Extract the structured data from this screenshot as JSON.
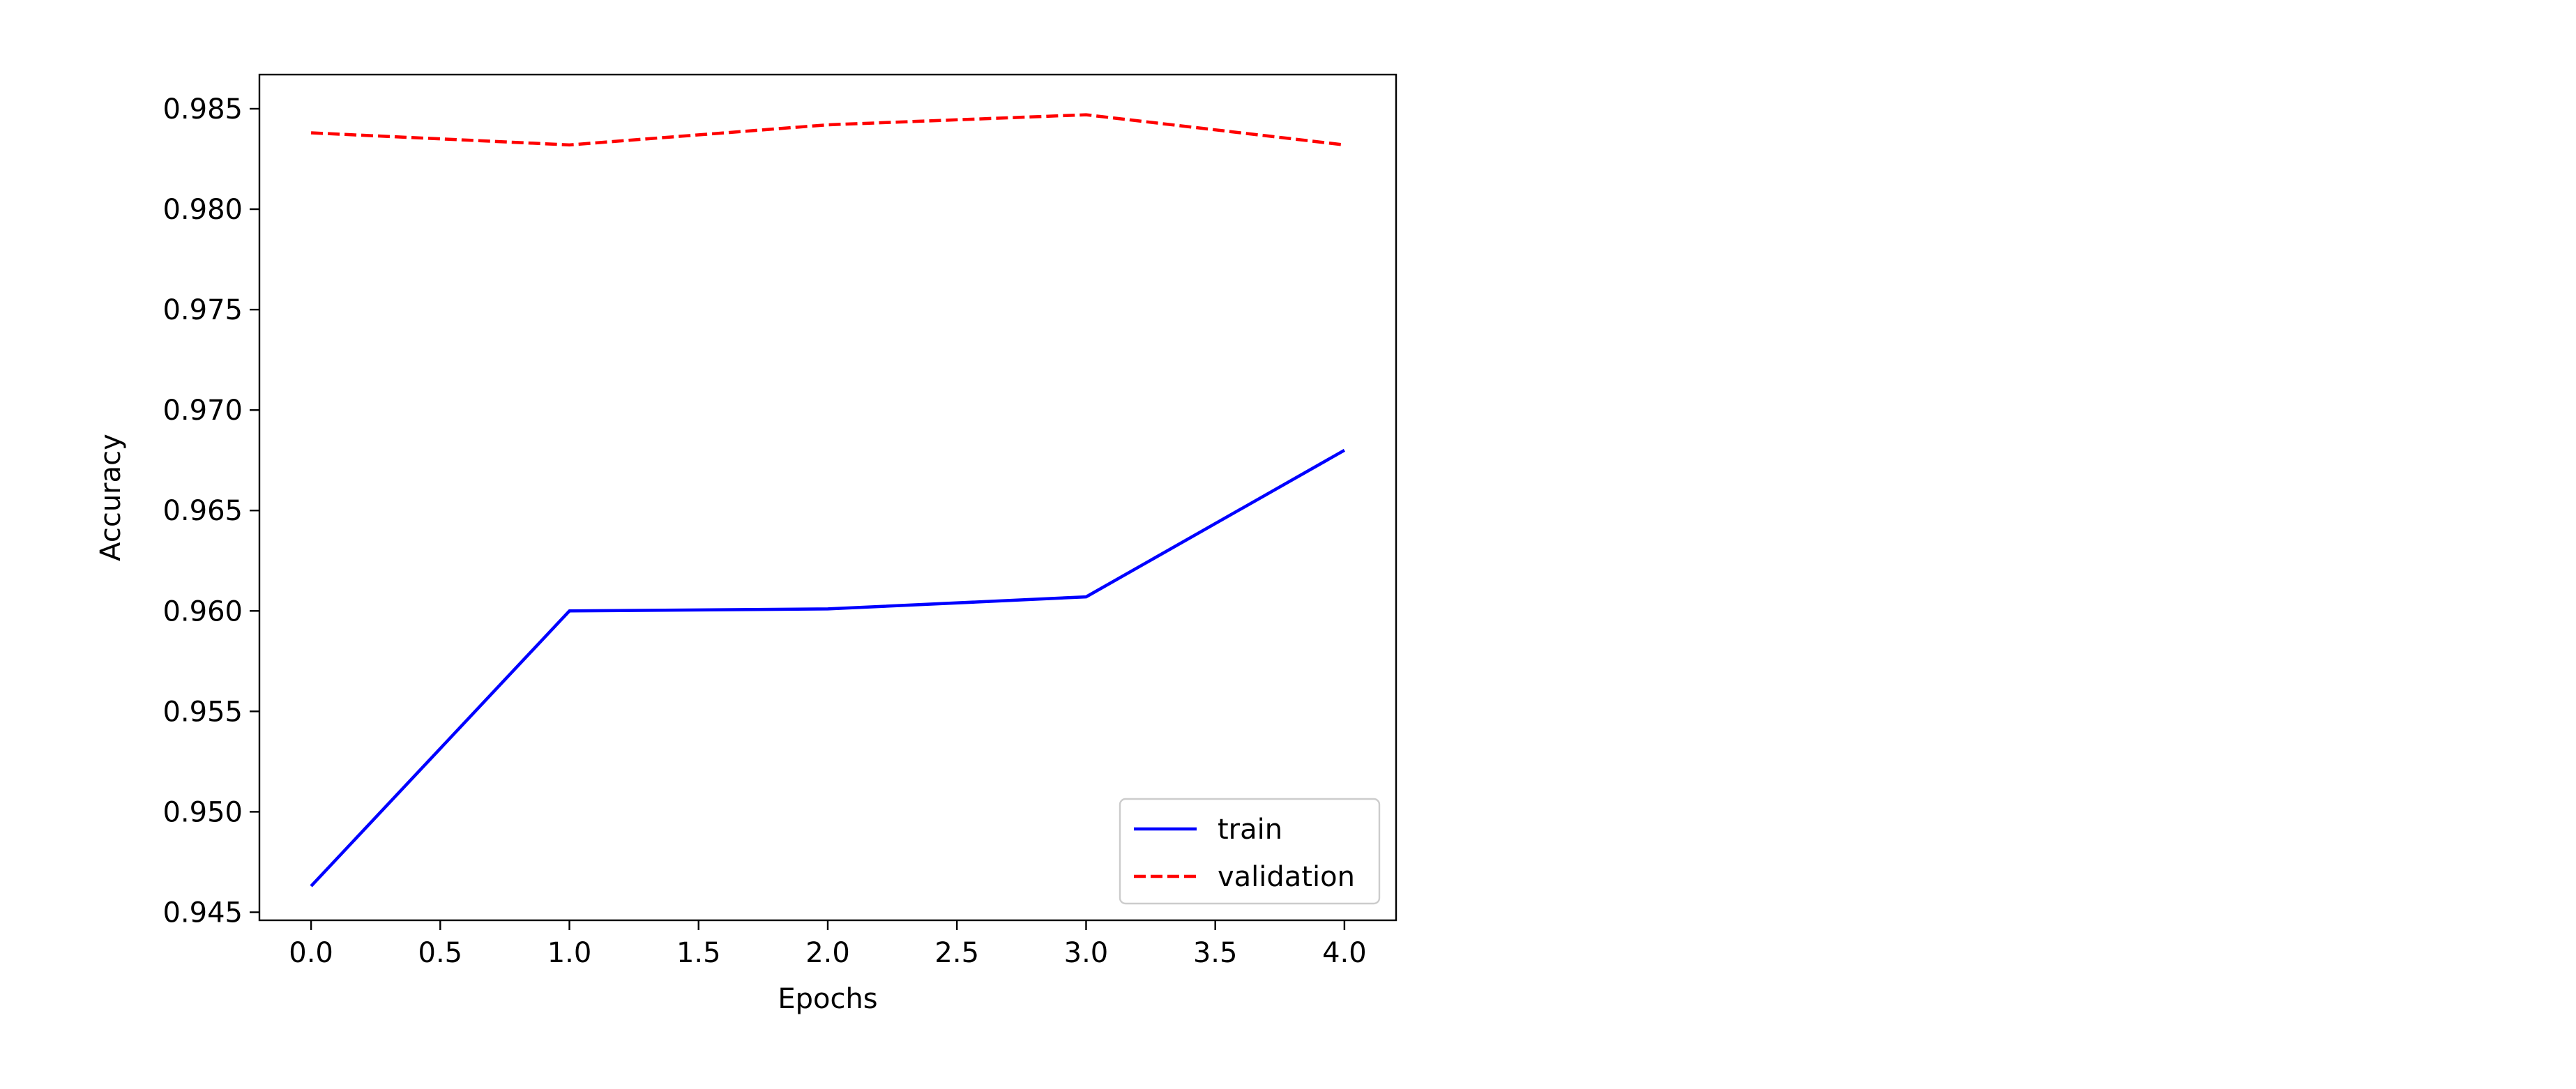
{
  "chart_data": {
    "type": "line",
    "xlabel": "Epochs",
    "ylabel": "Accuracy",
    "xlim": [
      -0.2,
      4.2
    ],
    "ylim": [
      0.9446,
      0.9867
    ],
    "x_ticks": [
      "0.0",
      "0.5",
      "1.0",
      "1.5",
      "2.0",
      "2.5",
      "3.0",
      "3.5",
      "4.0"
    ],
    "y_ticks": [
      "0.945",
      "0.950",
      "0.955",
      "0.960",
      "0.965",
      "0.970",
      "0.975",
      "0.980",
      "0.985"
    ],
    "grid": false,
    "legend_position": "lower-right",
    "x": [
      0,
      1,
      2,
      3,
      4
    ],
    "series": [
      {
        "name": "train",
        "values": [
          0.9463,
          0.96,
          0.9601,
          0.9607,
          0.968
        ],
        "color": "#0000ff",
        "line_style": "solid"
      },
      {
        "name": "validation",
        "values": [
          0.9838,
          0.9832,
          0.9842,
          0.9847,
          0.9832
        ],
        "color": "#ff0000",
        "line_style": "dashed"
      }
    ]
  }
}
